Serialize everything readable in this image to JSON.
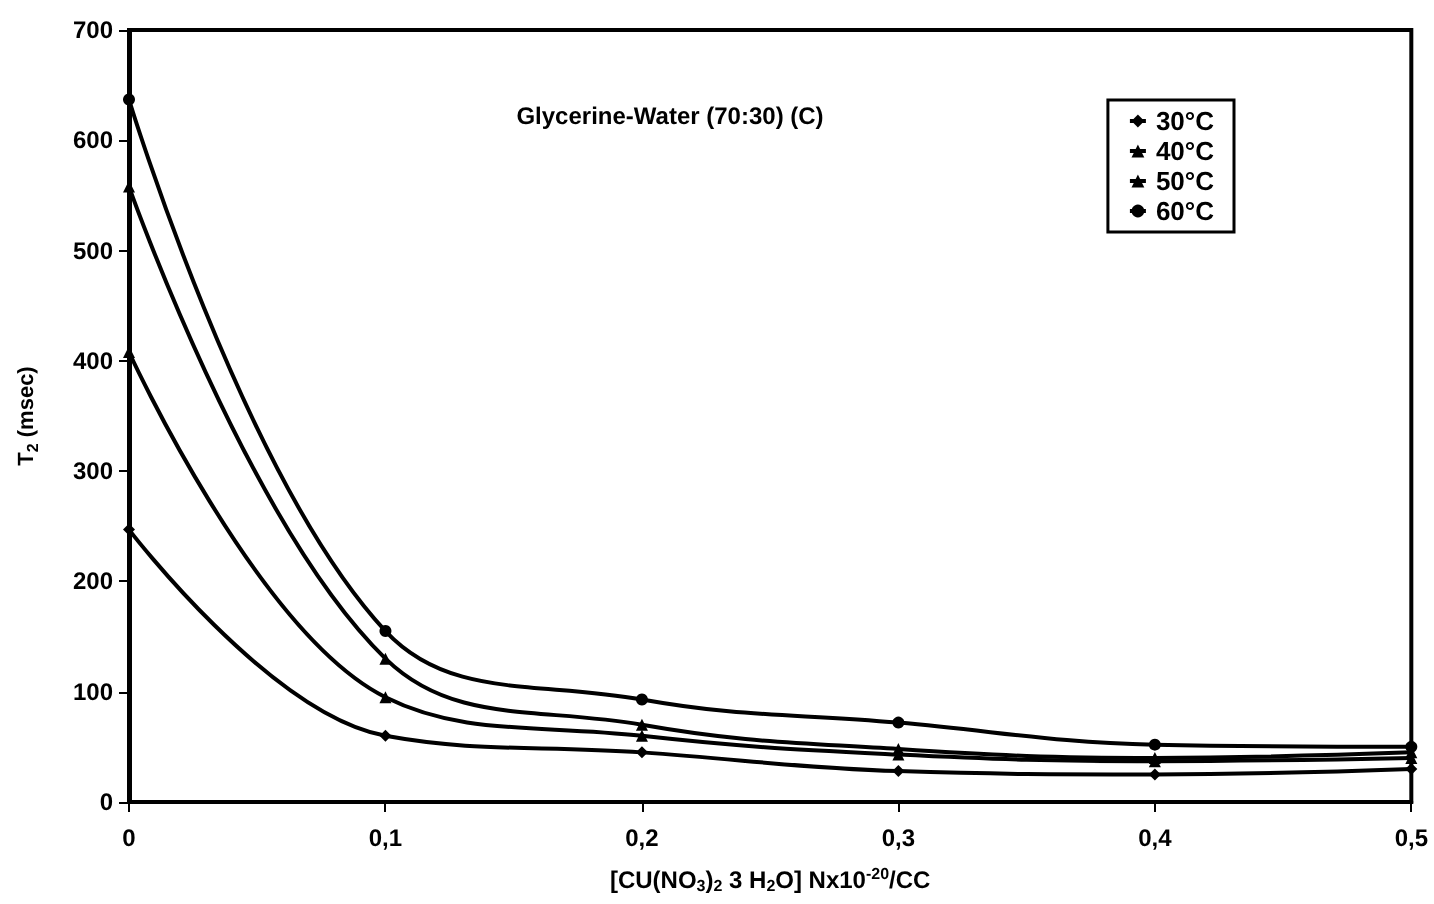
{
  "chart_data": {
    "type": "line",
    "title": "Glycerine-Water (70:30) (C)",
    "xlabel": "[CU(NO$_{3}$)$_{2}$ 3 H$_{2}$O] Nx10$^{-20}$/CC",
    "ylabel": "T$_{2}$ (msec)",
    "x": [
      0,
      0.1,
      0.2,
      0.3,
      0.4,
      0.5
    ],
    "series": [
      {
        "name": "30°C",
        "color": "#000000",
        "marker": "diamond",
        "values": [
          247,
          60,
          45,
          28,
          25,
          30
        ]
      },
      {
        "name": "40°C",
        "color": "#000000",
        "marker": "triangle",
        "values": [
          408,
          95,
          60,
          43,
          37,
          40
        ]
      },
      {
        "name": "50°C",
        "color": "#000000",
        "marker": "triangle",
        "values": [
          558,
          130,
          70,
          48,
          40,
          45
        ]
      },
      {
        "name": "60°C",
        "color": "#000000",
        "marker": "circle",
        "values": [
          637,
          155,
          93,
          72,
          52,
          50
        ]
      }
    ],
    "xlim": [
      0,
      0.5
    ],
    "xticks": [
      0,
      {
        "value": 0.1,
        "label": "0,1"
      },
      {
        "value": 0.2,
        "label": "0,2"
      },
      {
        "value": 0.3,
        "label": "0,3"
      },
      {
        "value": 0.4,
        "label": "0,4"
      },
      {
        "value": 0.5,
        "label": "0,5"
      }
    ],
    "ylim": [
      0,
      700
    ],
    "yticks": [
      0,
      100,
      200,
      300,
      400,
      500,
      600,
      700
    ],
    "grid": false,
    "legend": "top right",
    "line_style": "solid"
  }
}
